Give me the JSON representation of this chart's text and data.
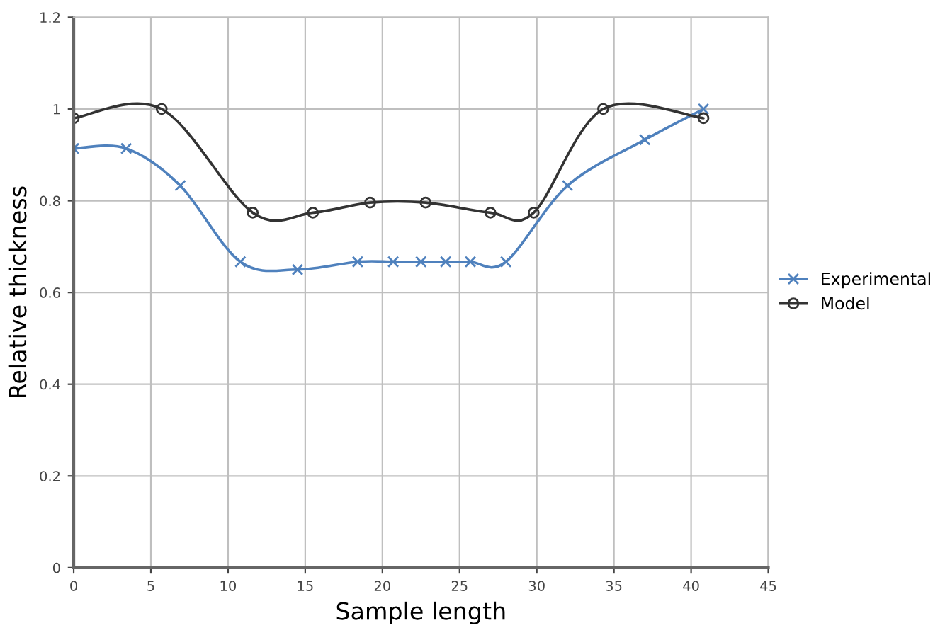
{
  "chart_data": {
    "type": "line",
    "xlabel": "Sample length",
    "ylabel": "Relative thickness",
    "xlim": [
      0,
      45
    ],
    "xticks": [
      0,
      5,
      10,
      15,
      20,
      25,
      30,
      35,
      40,
      45
    ],
    "ylim": [
      0,
      1.2
    ],
    "yticks": [
      0,
      0.2,
      0.4,
      0.6,
      0.8,
      1,
      1.2
    ],
    "grid": true,
    "legend": "right",
    "line_style": "solid",
    "series": [
      {
        "name": "Experimental",
        "color": "#4f81bd",
        "marker": "cross",
        "x": [
          0,
          3.4,
          6.9,
          10.8,
          14.5,
          18.4,
          20.7,
          22.5,
          24.1,
          25.7,
          28.0,
          32.0,
          37.0,
          40.8
        ],
        "values": [
          0.914,
          0.914,
          0.833,
          0.667,
          0.65,
          0.667,
          0.667,
          0.667,
          0.667,
          0.667,
          0.667,
          0.833,
          0.933,
          1.0
        ]
      },
      {
        "name": "Model",
        "color": "#333333",
        "marker": "circle",
        "x": [
          0,
          5.7,
          11.6,
          15.5,
          19.2,
          22.8,
          27.0,
          29.8,
          34.3,
          40.8
        ],
        "values": [
          0.98,
          1.0,
          0.774,
          0.774,
          0.796,
          0.796,
          0.774,
          0.774,
          1.0,
          0.98
        ]
      }
    ]
  }
}
